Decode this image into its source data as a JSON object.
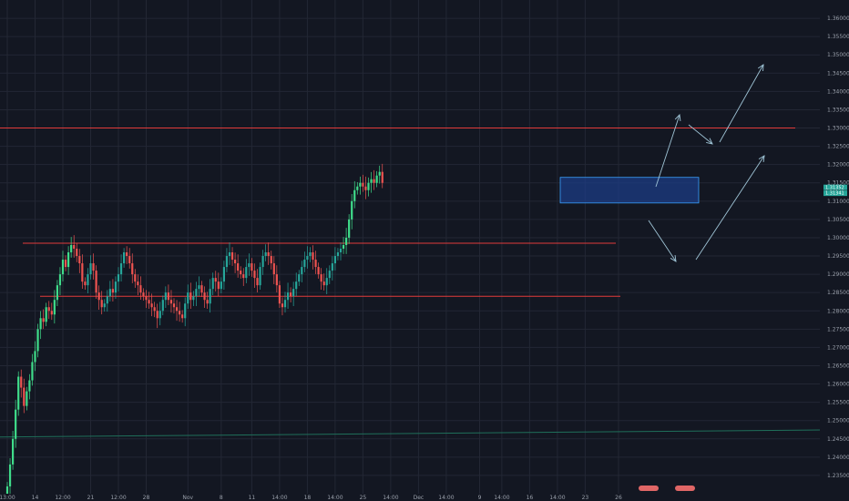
{
  "chart_data": {
    "type": "candlestick",
    "title": "",
    "xlabel": "",
    "ylabel": "",
    "ylim": [
      1.23,
      1.365
    ],
    "grid": true,
    "colors": {
      "background": "#131722",
      "grid": "#232734",
      "up": "#26a69a",
      "up_bright": "#3fdc8a",
      "down": "#ef5350",
      "level_line": "#e23b3b",
      "trend_line": "#1f6f5a",
      "zone_fill": "#1d3f8a",
      "zone_stroke": "#3aa0ff",
      "arrow": "#9fc4d6",
      "price_tag": "#26a69a"
    },
    "y_ticks": [
      "1.36000",
      "1.35500",
      "1.35000",
      "1.34500",
      "1.34000",
      "1.33500",
      "1.33000",
      "1.32500",
      "1.32000",
      "1.31500",
      "1.31000",
      "1.30500",
      "1.30000",
      "1.29500",
      "1.29000",
      "1.28500",
      "1.28000",
      "1.27500",
      "1.27000",
      "1.26500",
      "1.26000",
      "1.25500",
      "1.25000",
      "1.24500",
      "1.24000",
      "1.23500"
    ],
    "x_ticks": [
      {
        "label": "13:00",
        "i": 0
      },
      {
        "label": "14",
        "i": 10
      },
      {
        "label": "12:00",
        "i": 20
      },
      {
        "label": "21",
        "i": 30
      },
      {
        "label": "12:00",
        "i": 40
      },
      {
        "label": "28",
        "i": 50
      },
      {
        "label": "Nov",
        "i": 65
      },
      {
        "label": "8",
        "i": 77
      },
      {
        "label": "11",
        "i": 88
      },
      {
        "label": "14:00",
        "i": 98
      },
      {
        "label": "18",
        "i": 108
      },
      {
        "label": "14:00",
        "i": 118
      },
      {
        "label": "25",
        "i": 128
      },
      {
        "label": "14:00",
        "i": 138
      },
      {
        "label": "Dec",
        "i": 148
      },
      {
        "label": "14:00",
        "i": 158
      },
      {
        "label": "9",
        "i": 170
      },
      {
        "label": "14:00",
        "i": 178
      },
      {
        "label": "16",
        "i": 188
      },
      {
        "label": "14:00",
        "i": 198
      },
      {
        "label": "23",
        "i": 208
      },
      {
        "label": "26",
        "i": 220
      }
    ],
    "closes": [
      1.232,
      1.238,
      1.245,
      1.253,
      1.262,
      1.259,
      1.254,
      1.258,
      1.261,
      1.266,
      1.269,
      1.275,
      1.278,
      1.277,
      1.281,
      1.28,
      1.279,
      1.283,
      1.287,
      1.29,
      1.294,
      1.292,
      1.296,
      1.298,
      1.297,
      1.295,
      1.293,
      1.288,
      1.287,
      1.29,
      1.293,
      1.291,
      1.285,
      1.283,
      1.281,
      1.282,
      1.284,
      1.286,
      1.285,
      1.288,
      1.29,
      1.293,
      1.296,
      1.295,
      1.293,
      1.29,
      1.288,
      1.287,
      1.285,
      1.284,
      1.283,
      1.282,
      1.281,
      1.28,
      1.278,
      1.28,
      1.283,
      1.285,
      1.283,
      1.282,
      1.281,
      1.28,
      1.279,
      1.278,
      1.282,
      1.285,
      1.283,
      1.284,
      1.286,
      1.287,
      1.285,
      1.283,
      1.282,
      1.286,
      1.289,
      1.288,
      1.286,
      1.288,
      1.292,
      1.295,
      1.296,
      1.294,
      1.293,
      1.291,
      1.29,
      1.289,
      1.292,
      1.293,
      1.291,
      1.289,
      1.287,
      1.292,
      1.295,
      1.296,
      1.295,
      1.293,
      1.29,
      1.287,
      1.282,
      1.281,
      1.283,
      1.285,
      1.284,
      1.286,
      1.288,
      1.29,
      1.292,
      1.294,
      1.295,
      1.296,
      1.294,
      1.292,
      1.29,
      1.288,
      1.287,
      1.289,
      1.291,
      1.293,
      1.295,
      1.296,
      1.297,
      1.298,
      1.3,
      1.305,
      1.31,
      1.313,
      1.314,
      1.315,
      1.314,
      1.313,
      1.315,
      1.316,
      1.315,
      1.317,
      1.318,
      1.315
    ],
    "price_tags": [
      "1.31352",
      "1.31341"
    ],
    "levels": [
      {
        "name": "upper-resistance",
        "y": 1.33,
        "x0": 0,
        "x1": 873
      },
      {
        "name": "range-top",
        "y": 1.2985,
        "x0": 25,
        "x1": 676
      },
      {
        "name": "range-bottom",
        "y": 1.284,
        "x0": 44,
        "x1": 681
      }
    ],
    "zone": {
      "y0": 1.3095,
      "y1": 1.3165
    },
    "trend_line": {
      "x0": 0,
      "y0": 1.2455,
      "x1": 932,
      "y1": 1.2475
    }
  }
}
